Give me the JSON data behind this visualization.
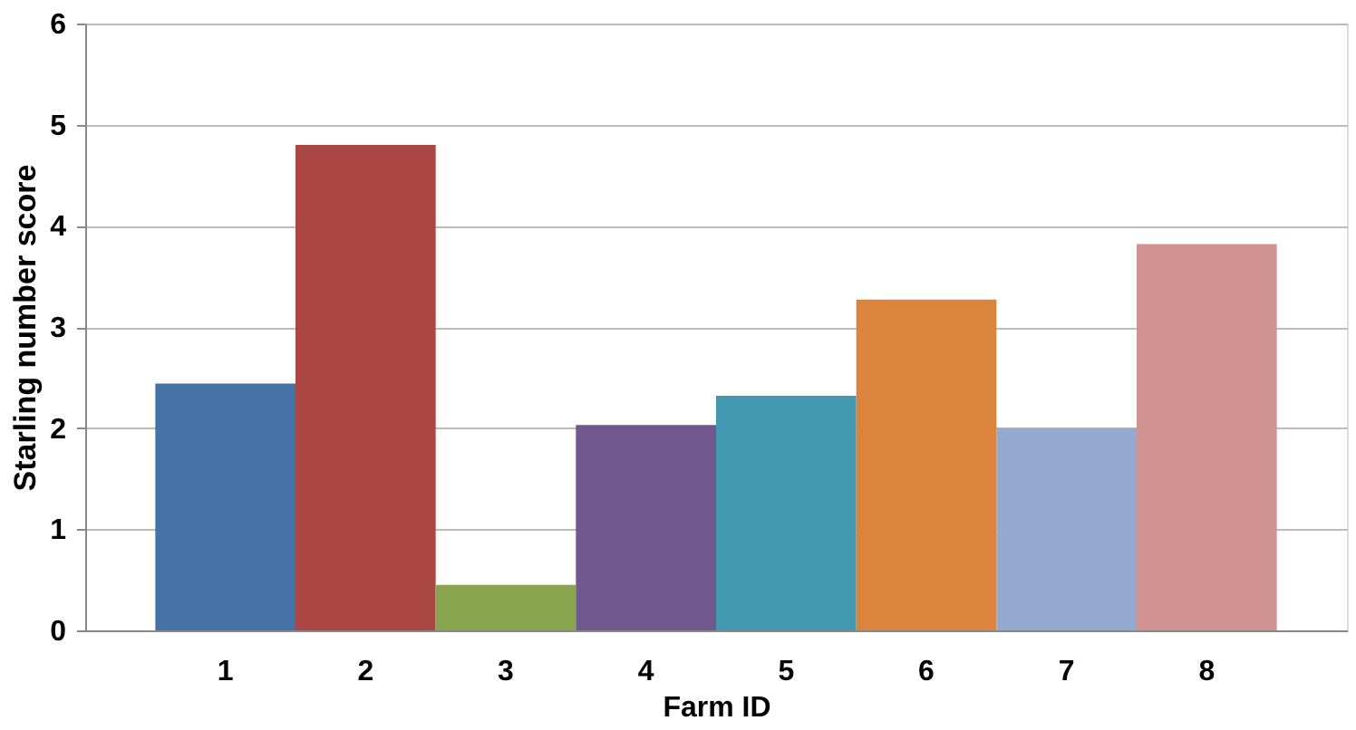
{
  "chart_data": {
    "type": "bar",
    "xlabel": "Farm ID",
    "ylabel": "Starling number score",
    "categories": [
      "1",
      "2",
      "3",
      "4",
      "5",
      "6",
      "7",
      "8"
    ],
    "values": [
      2.44,
      4.8,
      0.45,
      2.03,
      2.32,
      3.27,
      2.0,
      3.82
    ],
    "colors": [
      "#4572a7",
      "#aa4643",
      "#89a54e",
      "#71588f",
      "#4198af",
      "#db843d",
      "#93a9cf",
      "#d19392"
    ],
    "ylim": [
      0,
      6
    ],
    "yticks": [
      0,
      1,
      2,
      3,
      4,
      5,
      6
    ],
    "grid": "y"
  }
}
